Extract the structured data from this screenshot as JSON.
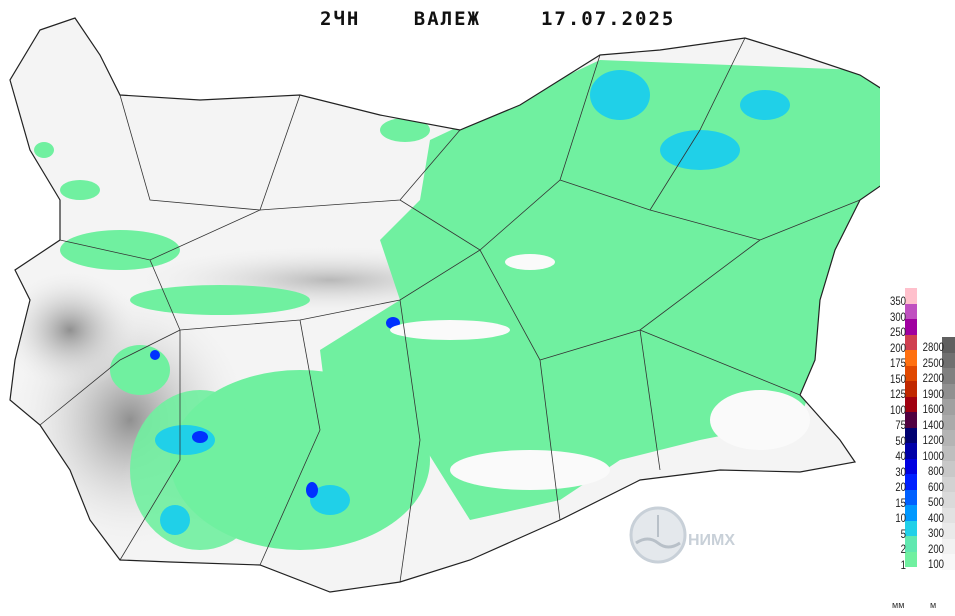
{
  "title": {
    "product": "2ЧН ВАЛЕЖ",
    "date": "17.07.2025"
  },
  "legend": {
    "precip_unit": "мм",
    "elev_unit": "м",
    "precip_levels": [
      {
        "label": "350",
        "color": "#ffc0cc"
      },
      {
        "label": "300",
        "color": "#c050c0"
      },
      {
        "label": "250",
        "color": "#a000a0"
      },
      {
        "label": "200",
        "color": "#d04050"
      },
      {
        "label": "175",
        "color": "#ff7010"
      },
      {
        "label": "150",
        "color": "#e04800"
      },
      {
        "label": "125",
        "color": "#c02800"
      },
      {
        "label": "100",
        "color": "#a00010"
      },
      {
        "label": "75",
        "color": "#500040"
      },
      {
        "label": "50",
        "color": "#000070"
      },
      {
        "label": "40",
        "color": "#0000a8"
      },
      {
        "label": "30",
        "color": "#0000e0"
      },
      {
        "label": "20",
        "color": "#0020ff"
      },
      {
        "label": "15",
        "color": "#0060ff"
      },
      {
        "label": "10",
        "color": "#0098ff"
      },
      {
        "label": "5",
        "color": "#20d0e8"
      },
      {
        "label": "2",
        "color": "#60e8b0"
      },
      {
        "label": "1",
        "color": "#70f0a0"
      }
    ],
    "elev_levels": [
      {
        "label": "2800",
        "color": "#606060"
      },
      {
        "label": "2500",
        "color": "#707070"
      },
      {
        "label": "2200",
        "color": "#808080"
      },
      {
        "label": "1900",
        "color": "#909090"
      },
      {
        "label": "1600",
        "color": "#a0a0a0"
      },
      {
        "label": "1400",
        "color": "#aaaaaa"
      },
      {
        "label": "1200",
        "color": "#b4b4b4"
      },
      {
        "label": "1000",
        "color": "#bebebe"
      },
      {
        "label": "800",
        "color": "#c8c8c8"
      },
      {
        "label": "600",
        "color": "#d2d2d2"
      },
      {
        "label": "500",
        "color": "#dadada"
      },
      {
        "label": "400",
        "color": "#e2e2e2"
      },
      {
        "label": "300",
        "color": "#eaeaea"
      },
      {
        "label": "200",
        "color": "#f2f2f2"
      },
      {
        "label": "100",
        "color": "#f8f8f8"
      }
    ]
  },
  "logo": {
    "text": "НИМХ"
  },
  "colors": {
    "rain_light": "#70f0a0",
    "rain_moderate": "#20d0e8",
    "rain_heavy": "#0020ff",
    "border": "#222222"
  }
}
